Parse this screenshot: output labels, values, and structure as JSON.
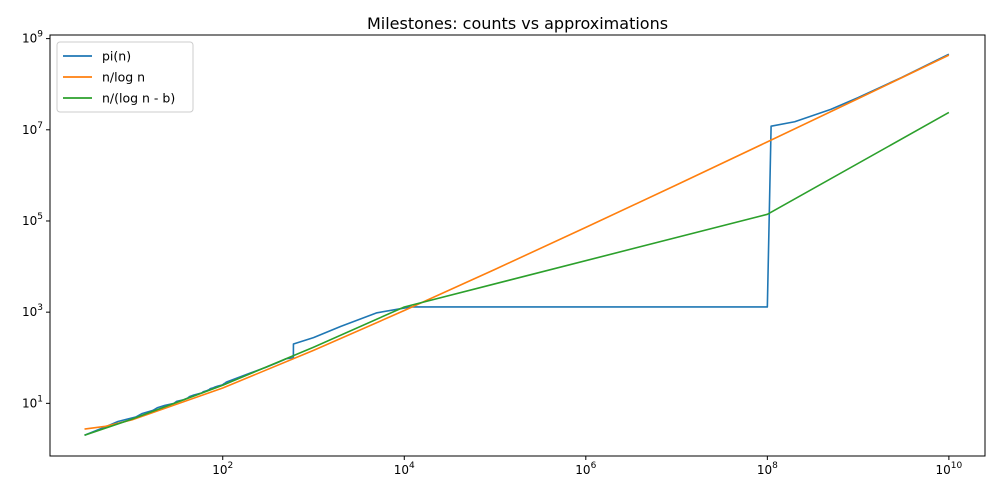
{
  "chart_data": {
    "type": "line",
    "title": "Milestones: counts vs approximations",
    "xlabel": "",
    "ylabel": "",
    "xscale": "log",
    "yscale": "log",
    "xlim": [
      1.25,
      25000000000
    ],
    "ylim": [
      0.7,
      1200000000
    ],
    "xticks": [
      {
        "value": 100,
        "base": "10",
        "exp": "2"
      },
      {
        "value": 10000,
        "base": "10",
        "exp": "4"
      },
      {
        "value": 1000000,
        "base": "10",
        "exp": "6"
      },
      {
        "value": 100000000,
        "base": "10",
        "exp": "8"
      },
      {
        "value": 10000000000,
        "base": "10",
        "exp": "10"
      }
    ],
    "yticks": [
      {
        "value": 10,
        "base": "10",
        "exp": "1"
      },
      {
        "value": 1000,
        "base": "10",
        "exp": "3"
      },
      {
        "value": 100000,
        "base": "10",
        "exp": "5"
      },
      {
        "value": 10000000,
        "base": "10",
        "exp": "7"
      },
      {
        "value": 1000000000,
        "base": "10",
        "exp": "9"
      }
    ],
    "grid": false,
    "legend_position": "top-left",
    "series": [
      {
        "name": "pi(n)",
        "color": "#1f77b4",
        "points": [
          [
            3,
            2
          ],
          [
            5,
            3
          ],
          [
            7,
            4
          ],
          [
            11,
            5
          ],
          [
            13,
            6
          ],
          [
            17,
            7
          ],
          [
            19,
            8
          ],
          [
            23,
            9
          ],
          [
            29,
            10
          ],
          [
            31,
            11
          ],
          [
            37,
            12
          ],
          [
            41,
            13
          ],
          [
            43,
            14
          ],
          [
            47,
            15
          ],
          [
            53,
            16
          ],
          [
            59,
            17
          ],
          [
            61,
            18
          ],
          [
            67,
            19
          ],
          [
            71,
            20
          ],
          [
            73,
            21
          ],
          [
            79,
            22
          ],
          [
            83,
            23
          ],
          [
            89,
            24
          ],
          [
            97,
            25
          ],
          [
            101,
            26
          ],
          [
            103,
            27
          ],
          [
            107,
            28
          ],
          [
            109,
            29
          ],
          [
            113,
            30
          ],
          [
            200,
            46
          ],
          [
            300,
            62
          ],
          [
            400,
            78
          ],
          [
            500,
            95
          ],
          [
            600,
            100
          ],
          [
            601,
            200
          ],
          [
            1000,
            276
          ],
          [
            2000,
            489
          ],
          [
            5000,
            969
          ],
          [
            10000,
            1229
          ],
          [
            12000,
            1300
          ],
          [
            100000000,
            1300
          ],
          [
            110000000,
            12000000
          ],
          [
            200000000,
            15000000
          ],
          [
            500000000,
            28000000
          ],
          [
            1000000000,
            50847534
          ],
          [
            3000000000,
            140000000
          ],
          [
            10000000000,
            455052511
          ]
        ]
      },
      {
        "name": "n/log n",
        "color": "#ff7f0e",
        "points": [
          [
            3,
            2.73
          ],
          [
            5,
            3.11
          ],
          [
            10,
            4.34
          ],
          [
            100,
            21.7
          ],
          [
            1000,
            144.8
          ],
          [
            10000,
            1085.7
          ],
          [
            100000,
            8685.9
          ],
          [
            1000000,
            72382.4
          ],
          [
            10000000,
            620420.7
          ],
          [
            100000000,
            5428681
          ],
          [
            1000000000,
            48254942
          ],
          [
            10000000000,
            434294482
          ]
        ]
      },
      {
        "name": "n/(log n - b)",
        "color": "#2ca02c",
        "points": [
          [
            3,
            2
          ],
          [
            10,
            4.5
          ],
          [
            100,
            25
          ],
          [
            1000,
            170
          ],
          [
            10000,
            1300
          ],
          [
            100000000,
            140000
          ],
          [
            10000000000,
            24000000
          ]
        ]
      }
    ]
  }
}
